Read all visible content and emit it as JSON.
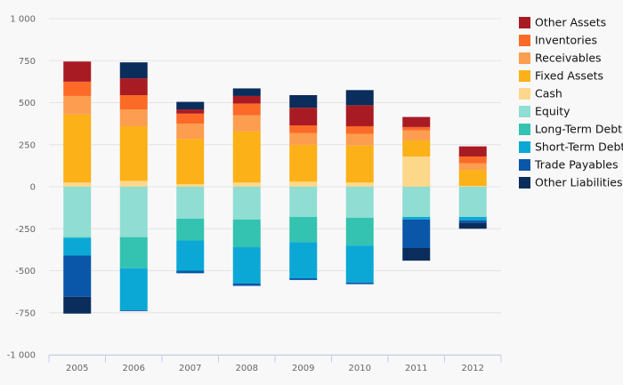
{
  "chart_data": {
    "type": "bar",
    "stacked": true,
    "categories": [
      "2005",
      "2006",
      "2007",
      "2008",
      "2009",
      "2010",
      "2011",
      "2012"
    ],
    "ylim": [
      -1000,
      1000
    ],
    "y_ticks": [
      1000,
      750,
      500,
      250,
      0,
      -250,
      -500,
      -750,
      -1000
    ],
    "y_tick_labels": [
      "1 000",
      "750",
      "500",
      "250",
      "0",
      "-250",
      "-500",
      "-750",
      "-1 000"
    ],
    "grid": true,
    "legend_position": "right",
    "title": "",
    "xlabel": "",
    "ylabel": "",
    "series": [
      {
        "name": "Cash",
        "group": "assets",
        "color": "#fdd78a",
        "values": [
          25,
          35,
          15,
          25,
          30,
          25,
          180,
          5
        ]
      },
      {
        "name": "Fixed Assets",
        "group": "assets",
        "color": "#fbb117",
        "values": [
          405,
          325,
          270,
          305,
          220,
          220,
          95,
          95
        ]
      },
      {
        "name": "Receivables",
        "group": "assets",
        "color": "#fd9d50",
        "values": [
          110,
          100,
          90,
          95,
          70,
          70,
          60,
          40
        ]
      },
      {
        "name": "Inventories",
        "group": "assets",
        "color": "#fc6a27",
        "values": [
          85,
          85,
          60,
          70,
          45,
          45,
          20,
          40
        ]
      },
      {
        "name": "Other Assets",
        "group": "assets",
        "color": "#a91b23",
        "values": [
          120,
          100,
          25,
          45,
          105,
          125,
          60,
          60
        ]
      },
      {
        "name": "Other Liabilities",
        "group": "assets",
        "color": "#0b2d5b",
        "values": [
          0,
          95,
          45,
          45,
          75,
          90,
          0,
          0
        ]
      },
      {
        "name": "Equity",
        "group": "liabilities",
        "color": "#8fddd3",
        "values": [
          -300,
          -300,
          -190,
          -195,
          -180,
          -185,
          -180,
          -180
        ]
      },
      {
        "name": "Long-Term Debt",
        "group": "liabilities",
        "color": "#34c3b0",
        "values": [
          -5,
          -185,
          -130,
          -165,
          -150,
          -165,
          0,
          0
        ]
      },
      {
        "name": "Short-Term Debt",
        "group": "liabilities",
        "color": "#0ba8d6",
        "values": [
          -105,
          -250,
          -180,
          -215,
          -215,
          -220,
          -15,
          -20
        ]
      },
      {
        "name": "Trade Payables",
        "group": "liabilities",
        "color": "#0a56a8",
        "values": [
          -245,
          -5,
          -15,
          -15,
          -10,
          -10,
          -170,
          -15
        ]
      },
      {
        "name": "Other Liabilities",
        "group": "liabilities",
        "color": "#0b2d5b",
        "values": [
          -100,
          0,
          0,
          0,
          0,
          0,
          -75,
          -35
        ]
      }
    ],
    "legend": [
      {
        "name": "Other Assets",
        "color": "#a91b23"
      },
      {
        "name": "Inventories",
        "color": "#fc6a27"
      },
      {
        "name": "Receivables",
        "color": "#fd9d50"
      },
      {
        "name": "Fixed Assets",
        "color": "#fbb117"
      },
      {
        "name": "Cash",
        "color": "#fdd78a"
      },
      {
        "name": "Equity",
        "color": "#8fddd3"
      },
      {
        "name": "Long-Term Debt",
        "color": "#34c3b0"
      },
      {
        "name": "Short-Term Debt",
        "color": "#0ba8d6"
      },
      {
        "name": "Trade Payables",
        "color": "#0a56a8"
      },
      {
        "name": "Other Liabilities",
        "color": "#0b2d5b"
      }
    ]
  }
}
